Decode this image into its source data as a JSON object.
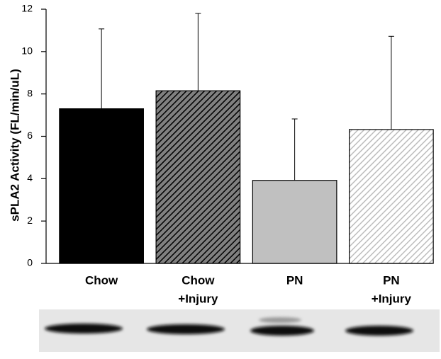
{
  "chart_data": {
    "type": "bar",
    "y_label": "sPLA2 Activity (FL/min/uL)",
    "categories": [
      [
        "Chow"
      ],
      [
        "Chow",
        "+Injury"
      ],
      [
        "PN"
      ],
      [
        "PN",
        "+Injury"
      ]
    ],
    "values": [
      7.3,
      8.15,
      3.92,
      6.32
    ],
    "errors": [
      3.77,
      3.65,
      2.9,
      4.4
    ],
    "colors": [
      "#000000",
      "#808080",
      "#c0c0c0",
      "#ffffff"
    ],
    "hatch_colors": [
      null,
      "#000000",
      null,
      "#bdbdbd"
    ],
    "ylim": [
      0,
      12
    ],
    "yticks": [
      0,
      2,
      4,
      6,
      8,
      10,
      12
    ]
  }
}
